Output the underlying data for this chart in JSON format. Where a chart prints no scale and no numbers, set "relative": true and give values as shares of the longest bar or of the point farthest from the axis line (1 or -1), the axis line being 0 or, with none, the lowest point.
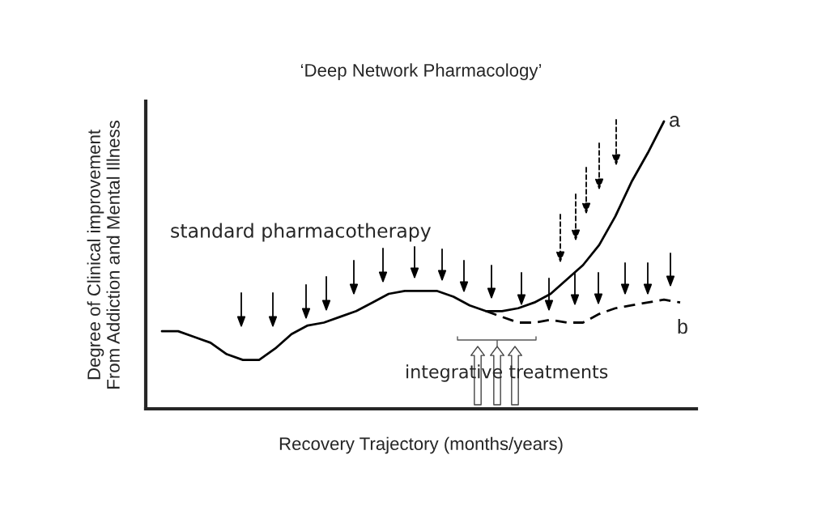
{
  "chart_data": {
    "type": "line",
    "relative": true,
    "title": "‘Deep Network Pharmacology’",
    "xlabel": "Recovery Trajectory (months/years)",
    "ylabel": "Degree of Clinical improvement\nFrom Addiction and Mental Illness",
    "categories": [
      null,
      null,
      null,
      null,
      null,
      null,
      null,
      null,
      null,
      null,
      null,
      null,
      null,
      null,
      null,
      null,
      null,
      null,
      null,
      null,
      null,
      null,
      null,
      null,
      null,
      null,
      null,
      null,
      null,
      null,
      null,
      null,
      null
    ],
    "series": [
      {
        "name": "a",
        "color": "#000000",
        "line_style": "solid",
        "values": [
          0.27,
          0.27,
          0.25,
          0.23,
          0.19,
          0.17,
          0.17,
          0.21,
          0.26,
          0.29,
          0.3,
          0.32,
          0.34,
          0.37,
          0.4,
          0.41,
          0.41,
          0.41,
          0.39,
          0.36,
          0.34,
          0.34,
          0.35,
          0.37,
          0.4,
          0.45,
          0.5,
          0.57,
          0.67,
          0.79,
          0.89,
          1,
          null
        ]
      },
      {
        "name": "b",
        "color": "#000000",
        "line_style": "dashed",
        "values": [
          null,
          null,
          null,
          null,
          null,
          null,
          null,
          null,
          null,
          null,
          null,
          null,
          null,
          null,
          null,
          null,
          null,
          null,
          null,
          null,
          0.34,
          0.32,
          0.3,
          0.3,
          0.31,
          0.3,
          0.3,
          0.33,
          0.35,
          0.36,
          0.37,
          0.38,
          0.37
        ]
      }
    ],
    "annotations": [
      "standard pharmacotherapy",
      "integrative treatments"
    ],
    "legend": false,
    "marker": "none"
  }
}
